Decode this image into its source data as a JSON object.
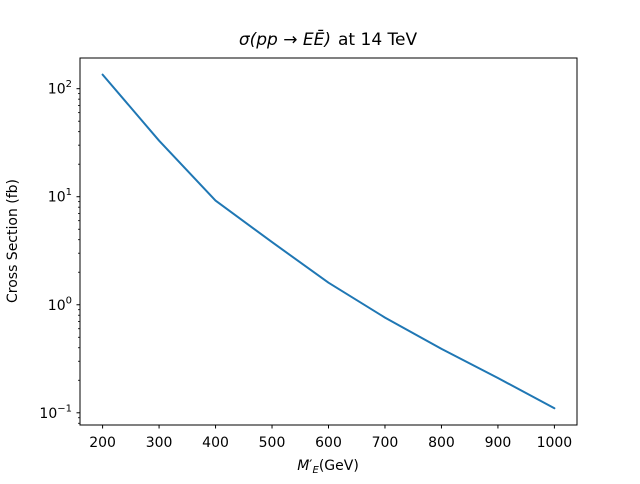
{
  "figure": {
    "title_math": "σ(pp → EĒ)",
    "title_rest": "at 14 TeV",
    "ylabel": "Cross Section (fb)",
    "xlabel_main": "M",
    "xlabel_prime": "′",
    "xlabel_sub": "E",
    "xlabel_unit": "(GeV)"
  },
  "chart_data": {
    "type": "line",
    "title": "σ(pp → EĒ) at 14 TeV",
    "xlabel": "M′_E(GeV)",
    "ylabel": "Cross Section (fb)",
    "series": [
      {
        "name": "cross-section",
        "x": [
          200,
          300,
          400,
          500,
          600,
          700,
          800,
          900,
          1000
        ],
        "y": [
          135,
          33,
          9.2,
          3.8,
          1.6,
          0.76,
          0.39,
          0.21,
          0.11
        ]
      }
    ],
    "x_ticks": [
      200,
      300,
      400,
      500,
      600,
      700,
      800,
      900,
      1000
    ],
    "x_tick_labels": [
      "200",
      "300",
      "400",
      "500",
      "600",
      "700",
      "800",
      "900",
      "1000"
    ],
    "y_tick_exponents": [
      2,
      1,
      0,
      -1
    ],
    "y_tick_labels": [
      "10²",
      "10¹",
      "10⁰",
      "10⁻¹"
    ],
    "xlim": [
      160,
      1040
    ],
    "ylim_log10": [
      -1.113,
      2.284
    ],
    "y_scale": "log",
    "grid": false,
    "legend": null,
    "line_color": "#1f77b4",
    "axis_color": "#000000",
    "background_color": "#ffffff"
  }
}
